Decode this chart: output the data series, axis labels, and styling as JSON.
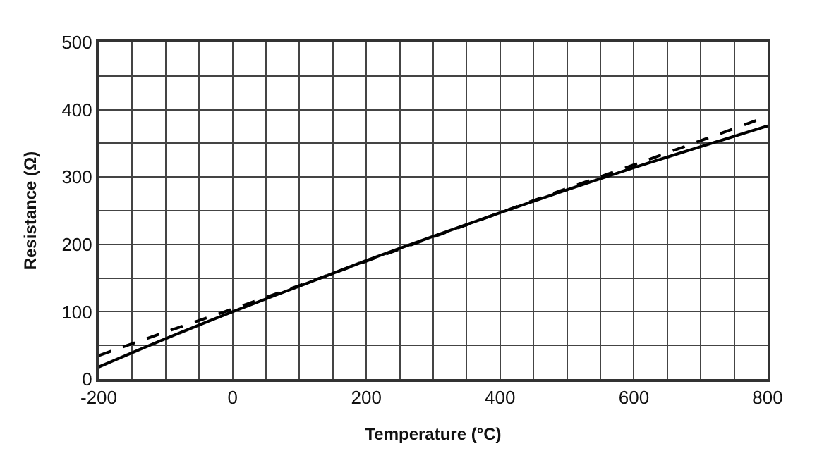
{
  "chart_data": {
    "type": "line",
    "xlabel": "Temperature (°C)",
    "ylabel": "Resistance (Ω)",
    "x": [
      -200,
      -100,
      0,
      100,
      200,
      300,
      400,
      500,
      600,
      700,
      800
    ],
    "series": [
      {
        "color": "#000000",
        "line_style": "solid",
        "values": [
          18,
          60,
          100,
          138,
          176,
          212,
          247,
          281,
          314,
          345,
          376
        ]
      },
      {
        "color": "#000000",
        "line_style": "dashed",
        "values": [
          35,
          70,
          104,
          139,
          175,
          211,
          247,
          283,
          318,
          354,
          390
        ]
      }
    ],
    "xlim": [
      -200,
      800
    ],
    "xticks": [
      -200,
      {
        "value": -150,
        "label": null
      },
      {
        "value": -100,
        "label": null
      },
      {
        "value": -50,
        "label": null
      },
      0,
      {
        "value": 50,
        "label": null
      },
      {
        "value": 100,
        "label": null
      },
      {
        "value": 150,
        "label": null
      },
      200,
      {
        "value": 250,
        "label": null
      },
      {
        "value": 300,
        "label": null
      },
      {
        "value": 350,
        "label": null
      },
      400,
      {
        "value": 450,
        "label": null
      },
      {
        "value": 500,
        "label": null
      },
      {
        "value": 550,
        "label": null
      },
      600,
      {
        "value": 650,
        "label": null
      },
      {
        "value": 700,
        "label": null
      },
      {
        "value": 750,
        "label": null
      },
      800
    ],
    "ylim": [
      0,
      500
    ],
    "yticks": [
      0,
      {
        "value": 50,
        "label": null
      },
      100,
      {
        "value": 150,
        "label": null
      },
      200,
      {
        "value": 250,
        "label": null
      },
      300,
      {
        "value": 350,
        "label": null
      },
      400,
      {
        "value": 450,
        "label": null
      },
      500
    ],
    "grid": true,
    "marker": "none"
  }
}
